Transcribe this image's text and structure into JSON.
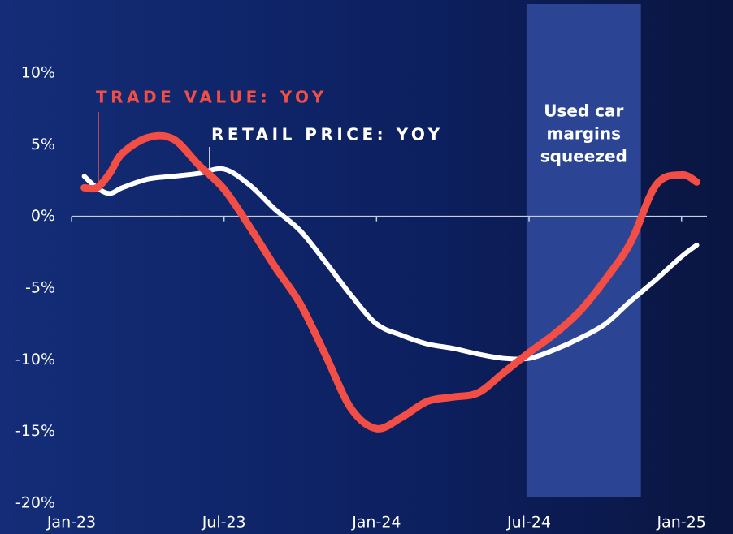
{
  "chart_data": {
    "type": "line",
    "x": [
      0.5,
      1,
      1.5,
      2,
      3,
      4,
      5,
      6,
      7,
      8,
      9,
      10,
      11,
      12,
      13,
      14,
      15,
      16,
      17,
      18,
      19,
      20,
      21,
      22,
      23,
      24,
      24.6
    ],
    "series": [
      {
        "name": "TRADE VALUE: YOY",
        "color": "#f24e45",
        "values": [
          2.0,
          2.0,
          3.0,
          4.4,
          5.5,
          5.4,
          3.6,
          1.9,
          -0.7,
          -3.5,
          -6.1,
          -9.7,
          -13.4,
          -14.8,
          -14.0,
          -12.9,
          -12.6,
          -12.3,
          -10.9,
          -9.5,
          -8.2,
          -6.6,
          -4.4,
          -1.8,
          2.2,
          2.9,
          2.4
        ]
      },
      {
        "name": "RETAIL PRICE: YOY",
        "color": "#ffffff",
        "values": [
          2.8,
          2.0,
          1.6,
          2.0,
          2.6,
          2.8,
          3.0,
          3.3,
          2.2,
          0.5,
          -1.0,
          -3.2,
          -5.5,
          -7.5,
          -8.3,
          -8.9,
          -9.2,
          -9.6,
          -9.9,
          -9.9,
          -9.3,
          -8.5,
          -7.5,
          -5.9,
          -4.4,
          -2.8,
          -2.0
        ]
      }
    ],
    "xlim": [
      0,
      25
    ],
    "xticks": [
      {
        "value": 0,
        "label": "Jan-23"
      },
      {
        "value": 6,
        "label": "Jul-23"
      },
      {
        "value": 12,
        "label": "Jan-24"
      },
      {
        "value": 18,
        "label": "Jul-24"
      },
      {
        "value": 24,
        "label": "Jan-25"
      }
    ],
    "ylim": [
      -20,
      10
    ],
    "yticks": [
      {
        "value": 10,
        "label": "10%"
      },
      {
        "value": 5,
        "label": "5%"
      },
      {
        "value": 0,
        "label": "0%"
      },
      {
        "value": -5,
        "label": "-5%"
      },
      {
        "value": -10,
        "label": "-10%"
      },
      {
        "value": -15,
        "label": "-15%"
      },
      {
        "value": -20,
        "label": "-20%"
      }
    ],
    "highlight": {
      "x": [
        17.9,
        22.4
      ],
      "label": [
        "Used car",
        "margins",
        "squeezed"
      ],
      "color": "#2b4594"
    }
  }
}
